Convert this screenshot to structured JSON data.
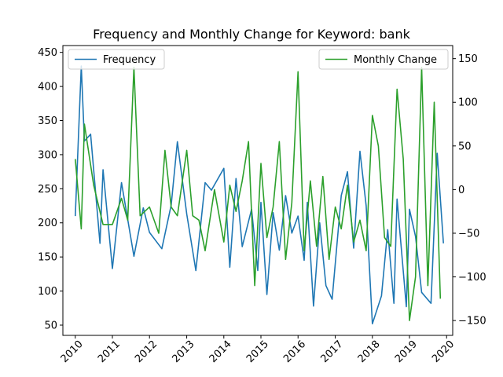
{
  "chart_data": {
    "type": "line",
    "title": "Frequency and Monthly Change for Keyword: bank",
    "xlabel": "",
    "ylabel_left": "",
    "ylabel_right": "",
    "x_range": [
      "2009-09-01",
      "2020-03-01"
    ],
    "x_ticks": [
      "2010",
      "2011",
      "2012",
      "2013",
      "2014",
      "2015",
      "2016",
      "2017",
      "2018",
      "2019",
      "2020"
    ],
    "ylim_left": [
      35,
      460
    ],
    "yticks_left": [
      50,
      100,
      150,
      200,
      250,
      300,
      350,
      400,
      450
    ],
    "ylim_right": [
      -167,
      165
    ],
    "yticks_right": [
      -150,
      -100,
      -50,
      0,
      50,
      100,
      150
    ],
    "grid": false,
    "legend_left_placement": "upper-left",
    "legend_right_placement": "upper-right",
    "series": [
      {
        "name": "Frequency",
        "axis": "left",
        "color": "#1f77b4",
        "x": [
          "2010-01",
          "2010-03",
          "2010-04",
          "2010-06",
          "2010-09",
          "2010-10",
          "2011-01",
          "2011-04",
          "2011-08",
          "2011-11",
          "2012-01",
          "2012-05",
          "2012-08",
          "2012-10",
          "2013-01",
          "2013-04",
          "2013-07",
          "2013-09",
          "2014-01",
          "2014-03",
          "2014-05",
          "2014-07",
          "2014-10",
          "2014-12",
          "2015-01",
          "2015-03",
          "2015-05",
          "2015-07",
          "2015-09",
          "2015-11",
          "2016-01",
          "2016-03",
          "2016-04",
          "2016-06",
          "2016-08",
          "2016-10",
          "2016-12",
          "2017-03",
          "2017-05",
          "2017-07",
          "2017-09",
          "2017-11",
          "2018-01",
          "2018-04",
          "2018-06",
          "2018-08",
          "2018-09",
          "2018-12",
          "2019-01",
          "2019-03",
          "2019-05",
          "2019-08",
          "2019-10",
          "2019-12"
        ],
        "values": [
          210,
          430,
          320,
          330,
          170,
          278,
          133,
          259,
          151,
          222,
          186,
          162,
          226,
          319,
          213,
          130,
          259,
          248,
          280,
          135,
          265,
          165,
          220,
          130,
          230,
          95,
          215,
          160,
          240,
          185,
          210,
          145,
          230,
          78,
          200,
          108,
          88,
          240,
          275,
          163,
          305,
          225,
          52,
          93,
          190,
          82,
          235,
          77,
          220,
          180,
          98,
          82,
          302,
          170
        ]
      },
      {
        "name": "Monthly Change",
        "axis": "right",
        "color": "#2ca02c",
        "x": [
          "2010-01",
          "2010-03",
          "2010-04",
          "2010-07",
          "2010-10",
          "2011-01",
          "2011-04",
          "2011-06",
          "2011-08",
          "2011-10",
          "2012-01",
          "2012-04",
          "2012-06",
          "2012-08",
          "2012-10",
          "2013-01",
          "2013-03",
          "2013-05",
          "2013-07",
          "2013-10",
          "2014-01",
          "2014-03",
          "2014-05",
          "2014-07",
          "2014-09",
          "2014-11",
          "2015-01",
          "2015-03",
          "2015-05",
          "2015-07",
          "2015-09",
          "2015-11",
          "2016-01",
          "2016-03",
          "2016-05",
          "2016-07",
          "2016-09",
          "2016-11",
          "2017-01",
          "2017-03",
          "2017-05",
          "2017-07",
          "2017-09",
          "2017-11",
          "2018-01",
          "2018-03",
          "2018-05",
          "2018-07",
          "2018-09",
          "2018-11",
          "2019-01",
          "2019-03",
          "2019-05",
          "2019-07",
          "2019-09",
          "2019-11"
        ],
        "values": [
          35,
          -45,
          75,
          5,
          -40,
          -40,
          -10,
          -35,
          140,
          -30,
          -20,
          -50,
          45,
          -20,
          -30,
          45,
          -30,
          -35,
          -70,
          0,
          -60,
          5,
          -25,
          10,
          55,
          -110,
          30,
          -55,
          -20,
          55,
          -80,
          -15,
          135,
          -70,
          10,
          -65,
          15,
          -80,
          -20,
          -45,
          5,
          -60,
          -35,
          -70,
          85,
          50,
          -55,
          -65,
          115,
          35,
          -150,
          -100,
          140,
          -110,
          100,
          -125
        ]
      }
    ]
  }
}
